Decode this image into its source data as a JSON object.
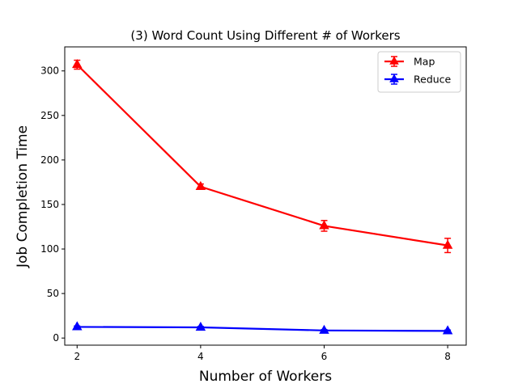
{
  "chart_data": {
    "type": "line",
    "title": "(3) Word Count Using Different # of Workers",
    "xlabel": "Number of Workers",
    "ylabel": "Job Completion Time",
    "x": [
      2,
      4,
      6,
      8
    ],
    "xlim": [
      1.8,
      8.3
    ],
    "ylim": [
      -8,
      327
    ],
    "xticks": [
      2,
      4,
      6,
      8
    ],
    "yticks": [
      0,
      50,
      100,
      150,
      200,
      250,
      300
    ],
    "grid": false,
    "legend_position": "upper right",
    "series": [
      {
        "name": "Map",
        "color": "#ff0000",
        "marker": "triangle-up",
        "values": [
          307,
          170,
          126,
          104
        ],
        "errors": [
          5,
          3,
          6,
          8
        ]
      },
      {
        "name": "Reduce",
        "color": "#0000ff",
        "marker": "triangle-up",
        "values": [
          12.5,
          12,
          8.5,
          8
        ],
        "errors": [
          1,
          1,
          1,
          1
        ]
      }
    ]
  }
}
